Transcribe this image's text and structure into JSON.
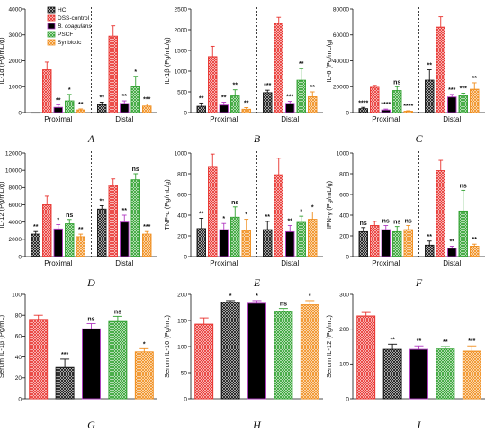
{
  "colors": {
    "HC": "#111111",
    "DSS-control": "#e8322e",
    "B. coagulans": "#b23ac2",
    "PSCF": "#2fa12f",
    "Synbiotic": "#f08c1a"
  },
  "legend": [
    {
      "key": "HC",
      "label": "HC"
    },
    {
      "key": "DSS-control",
      "label": "DSS-control"
    },
    {
      "key": "B. coagulans",
      "label": "B. coagulans"
    },
    {
      "key": "PSCF",
      "label": "PSCF"
    },
    {
      "key": "Synbiotic",
      "label": "Synbiotic"
    }
  ],
  "chart_data": [
    {
      "id": "A",
      "type": "bar",
      "letter": "A",
      "ylabel": "IL-1α (Pg/mL/g)",
      "ylim": [
        0,
        4000
      ],
      "yticks": [
        0,
        1000,
        2000,
        3000,
        4000
      ],
      "series_order": [
        "HC",
        "DSS-control",
        "B. coagulans",
        "PSCF",
        "Synbiotic"
      ],
      "groups": [
        {
          "label": "Proximal",
          "values": [
            0,
            1650,
            200,
            450,
            100
          ],
          "errors": [
            0,
            300,
            100,
            250,
            40
          ],
          "stars": [
            "",
            "",
            "**",
            "*",
            "**"
          ]
        },
        {
          "label": "Distal",
          "values": [
            300,
            2950,
            350,
            1000,
            250
          ],
          "errors": [
            100,
            400,
            100,
            400,
            80
          ],
          "stars": [
            "**",
            "",
            "**",
            "*",
            "***"
          ]
        }
      ]
    },
    {
      "id": "B",
      "type": "bar",
      "letter": "B",
      "ylabel": "IL-1β (Pg/mL/g)",
      "ylim": [
        0,
        2500
      ],
      "yticks": [
        0,
        500,
        1000,
        1500,
        2000,
        2500
      ],
      "series_order": [
        "HC",
        "DSS-control",
        "B. coagulans",
        "PSCF",
        "Synbiotic"
      ],
      "groups": [
        {
          "label": "Proximal",
          "values": [
            150,
            1350,
            180,
            400,
            80
          ],
          "errors": [
            80,
            250,
            70,
            150,
            40
          ],
          "stars": [
            "**",
            "",
            "**",
            "**",
            "**"
          ]
        },
        {
          "label": "Distal",
          "values": [
            480,
            2150,
            220,
            780,
            380
          ],
          "errors": [
            60,
            150,
            50,
            280,
            120
          ],
          "stars": [
            "***",
            "",
            "***",
            "**",
            "**"
          ]
        }
      ]
    },
    {
      "id": "C",
      "type": "bar",
      "letter": "C",
      "ylabel": "IL-6 (Pg/mL/g)",
      "ylim": [
        0,
        80000
      ],
      "yticks": [
        0,
        20000,
        40000,
        60000,
        80000
      ],
      "series_order": [
        "HC",
        "DSS-control",
        "B. coagulans",
        "PSCF",
        "Synbiotic"
      ],
      "groups": [
        {
          "label": "Proximal",
          "values": [
            3000,
            19500,
            2000,
            17000,
            1000
          ],
          "errors": [
            1000,
            1500,
            700,
            3000,
            400
          ],
          "stars": [
            "****",
            "",
            "****",
            "ns",
            "****"
          ]
        },
        {
          "label": "Distal",
          "values": [
            25000,
            66000,
            12000,
            13000,
            18000
          ],
          "errors": [
            8000,
            8000,
            2000,
            2000,
            5000
          ],
          "stars": [
            "**",
            "",
            "***",
            "***",
            "**"
          ]
        }
      ]
    },
    {
      "id": "D",
      "type": "bar",
      "letter": "D",
      "ylabel": "IL-12 (Pg/mL/g)",
      "ylim": [
        0,
        12000
      ],
      "yticks": [
        0,
        2000,
        4000,
        6000,
        8000,
        10000,
        12000
      ],
      "series_order": [
        "HC",
        "DSS-control",
        "B. coagulans",
        "PSCF",
        "Synbiotic"
      ],
      "groups": [
        {
          "label": "Proximal",
          "values": [
            2600,
            6000,
            3200,
            3800,
            2300
          ],
          "errors": [
            300,
            1000,
            500,
            500,
            300
          ],
          "stars": [
            "**",
            "",
            "*",
            "ns",
            "**"
          ]
        },
        {
          "label": "Distal",
          "values": [
            5500,
            8300,
            4000,
            8900,
            2600
          ],
          "errors": [
            400,
            700,
            800,
            700,
            300
          ],
          "stars": [
            "**",
            "",
            "**",
            "ns",
            "***"
          ]
        }
      ]
    },
    {
      "id": "E",
      "type": "bar",
      "letter": "E",
      "ylabel": "TNF-α (Pg/mL/g)",
      "ylim": [
        0,
        1000
      ],
      "yticks": [
        0,
        200,
        400,
        600,
        800,
        1000
      ],
      "series_order": [
        "HC",
        "DSS-control",
        "B. coagulans",
        "PSCF",
        "Synbiotic"
      ],
      "groups": [
        {
          "label": "Proximal",
          "values": [
            270,
            870,
            260,
            380,
            250
          ],
          "errors": [
            100,
            120,
            60,
            100,
            110
          ],
          "stars": [
            "**",
            "",
            "*",
            "ns",
            "*"
          ]
        },
        {
          "label": "Distal",
          "values": [
            260,
            790,
            240,
            330,
            360
          ],
          "errors": [
            80,
            160,
            60,
            60,
            70
          ],
          "stars": [
            "**",
            "",
            "**",
            "*",
            "*"
          ]
        }
      ]
    },
    {
      "id": "F",
      "type": "bar",
      "letter": "F",
      "ylabel": "IFN-γ (Pg/mL/g)",
      "ylim": [
        0,
        1000
      ],
      "yticks": [
        0,
        200,
        400,
        600,
        800,
        1000
      ],
      "series_order": [
        "HC",
        "DSS-control",
        "B. coagulans",
        "PSCF",
        "Synbiotic"
      ],
      "groups": [
        {
          "label": "Proximal",
          "values": [
            240,
            300,
            260,
            240,
            260
          ],
          "errors": [
            40,
            40,
            40,
            50,
            40
          ],
          "stars": [
            "ns",
            "",
            "ns",
            "ns",
            "ns"
          ]
        },
        {
          "label": "Distal",
          "values": [
            110,
            830,
            80,
            440,
            100
          ],
          "errors": [
            40,
            100,
            20,
            200,
            20
          ],
          "stars": [
            "**",
            "",
            "**",
            "ns",
            "**"
          ]
        }
      ]
    },
    {
      "id": "G",
      "type": "bar",
      "letter": "G",
      "ylabel": "Serum IL-1β (Pg/mL)",
      "ylim": [
        0,
        100
      ],
      "yticks": [
        0,
        20,
        40,
        60,
        80,
        100
      ],
      "series_order": [
        "DSS-control",
        "HC",
        "B. coagulans",
        "PSCF",
        "Synbiotic"
      ],
      "values": [
        76,
        30,
        67,
        74,
        45
      ],
      "errors": [
        4,
        8,
        5,
        5,
        3
      ],
      "stars": [
        "",
        "***",
        "ns",
        "ns",
        "*"
      ]
    },
    {
      "id": "H",
      "type": "bar",
      "letter": "H",
      "ylabel": "Serum IL-10 (Pg/mL)",
      "ylim": [
        0,
        200
      ],
      "yticks": [
        0,
        50,
        100,
        150,
        200
      ],
      "series_order": [
        "DSS-control",
        "HC",
        "B. coagulans",
        "PSCF",
        "Synbiotic"
      ],
      "values": [
        143,
        185,
        183,
        167,
        180
      ],
      "errors": [
        12,
        3,
        5,
        6,
        8
      ],
      "stars": [
        "",
        "*",
        "*",
        "ns",
        "*"
      ]
    },
    {
      "id": "I",
      "type": "bar",
      "letter": "I",
      "ylabel": "Serum IL-12 (Pg/mL)",
      "ylim": [
        0,
        300
      ],
      "yticks": [
        0,
        100,
        200,
        300
      ],
      "series_order": [
        "DSS-control",
        "HC",
        "B. coagulans",
        "PSCF",
        "Synbiotic"
      ],
      "values": [
        238,
        142,
        142,
        143,
        137
      ],
      "errors": [
        10,
        15,
        10,
        7,
        15
      ],
      "stars": [
        "",
        "**",
        "**",
        "**",
        "***"
      ]
    }
  ]
}
